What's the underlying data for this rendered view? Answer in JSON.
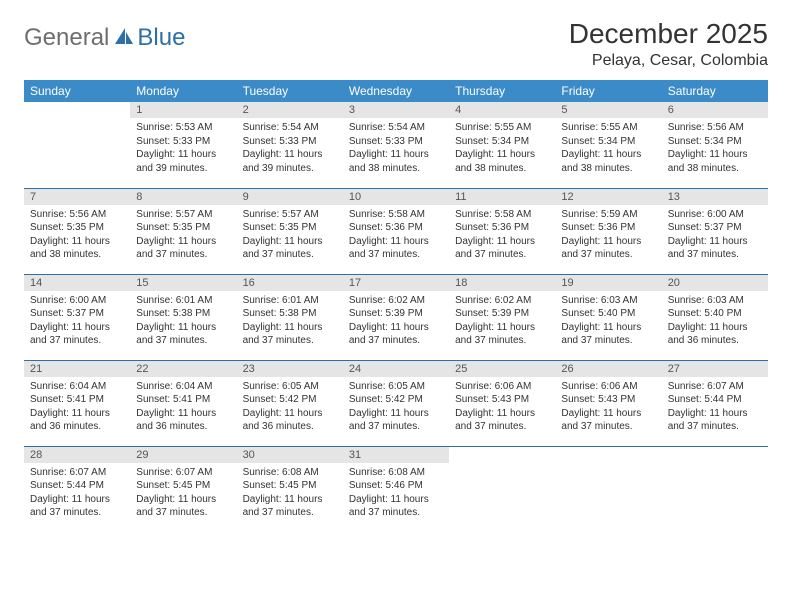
{
  "logo": {
    "general": "General",
    "blue": "Blue"
  },
  "title": "December 2025",
  "location": "Pelaya, Cesar, Colombia",
  "colors": {
    "header_bg": "#3b8bc9",
    "header_text": "#ffffff",
    "daynum_bg": "#e5e5e5",
    "border": "#2f6fa7",
    "logo_gray": "#6e6e6e",
    "logo_blue": "#2f6fa7"
  },
  "weekdays": [
    "Sunday",
    "Monday",
    "Tuesday",
    "Wednesday",
    "Thursday",
    "Friday",
    "Saturday"
  ],
  "weeks": [
    [
      null,
      {
        "n": "1",
        "sr": "5:53 AM",
        "ss": "5:33 PM",
        "dl": "11 hours and 39 minutes."
      },
      {
        "n": "2",
        "sr": "5:54 AM",
        "ss": "5:33 PM",
        "dl": "11 hours and 39 minutes."
      },
      {
        "n": "3",
        "sr": "5:54 AM",
        "ss": "5:33 PM",
        "dl": "11 hours and 38 minutes."
      },
      {
        "n": "4",
        "sr": "5:55 AM",
        "ss": "5:34 PM",
        "dl": "11 hours and 38 minutes."
      },
      {
        "n": "5",
        "sr": "5:55 AM",
        "ss": "5:34 PM",
        "dl": "11 hours and 38 minutes."
      },
      {
        "n": "6",
        "sr": "5:56 AM",
        "ss": "5:34 PM",
        "dl": "11 hours and 38 minutes."
      }
    ],
    [
      {
        "n": "7",
        "sr": "5:56 AM",
        "ss": "5:35 PM",
        "dl": "11 hours and 38 minutes."
      },
      {
        "n": "8",
        "sr": "5:57 AM",
        "ss": "5:35 PM",
        "dl": "11 hours and 37 minutes."
      },
      {
        "n": "9",
        "sr": "5:57 AM",
        "ss": "5:35 PM",
        "dl": "11 hours and 37 minutes."
      },
      {
        "n": "10",
        "sr": "5:58 AM",
        "ss": "5:36 PM",
        "dl": "11 hours and 37 minutes."
      },
      {
        "n": "11",
        "sr": "5:58 AM",
        "ss": "5:36 PM",
        "dl": "11 hours and 37 minutes."
      },
      {
        "n": "12",
        "sr": "5:59 AM",
        "ss": "5:36 PM",
        "dl": "11 hours and 37 minutes."
      },
      {
        "n": "13",
        "sr": "6:00 AM",
        "ss": "5:37 PM",
        "dl": "11 hours and 37 minutes."
      }
    ],
    [
      {
        "n": "14",
        "sr": "6:00 AM",
        "ss": "5:37 PM",
        "dl": "11 hours and 37 minutes."
      },
      {
        "n": "15",
        "sr": "6:01 AM",
        "ss": "5:38 PM",
        "dl": "11 hours and 37 minutes."
      },
      {
        "n": "16",
        "sr": "6:01 AM",
        "ss": "5:38 PM",
        "dl": "11 hours and 37 minutes."
      },
      {
        "n": "17",
        "sr": "6:02 AM",
        "ss": "5:39 PM",
        "dl": "11 hours and 37 minutes."
      },
      {
        "n": "18",
        "sr": "6:02 AM",
        "ss": "5:39 PM",
        "dl": "11 hours and 37 minutes."
      },
      {
        "n": "19",
        "sr": "6:03 AM",
        "ss": "5:40 PM",
        "dl": "11 hours and 37 minutes."
      },
      {
        "n": "20",
        "sr": "6:03 AM",
        "ss": "5:40 PM",
        "dl": "11 hours and 36 minutes."
      }
    ],
    [
      {
        "n": "21",
        "sr": "6:04 AM",
        "ss": "5:41 PM",
        "dl": "11 hours and 36 minutes."
      },
      {
        "n": "22",
        "sr": "6:04 AM",
        "ss": "5:41 PM",
        "dl": "11 hours and 36 minutes."
      },
      {
        "n": "23",
        "sr": "6:05 AM",
        "ss": "5:42 PM",
        "dl": "11 hours and 36 minutes."
      },
      {
        "n": "24",
        "sr": "6:05 AM",
        "ss": "5:42 PM",
        "dl": "11 hours and 37 minutes."
      },
      {
        "n": "25",
        "sr": "6:06 AM",
        "ss": "5:43 PM",
        "dl": "11 hours and 37 minutes."
      },
      {
        "n": "26",
        "sr": "6:06 AM",
        "ss": "5:43 PM",
        "dl": "11 hours and 37 minutes."
      },
      {
        "n": "27",
        "sr": "6:07 AM",
        "ss": "5:44 PM",
        "dl": "11 hours and 37 minutes."
      }
    ],
    [
      {
        "n": "28",
        "sr": "6:07 AM",
        "ss": "5:44 PM",
        "dl": "11 hours and 37 minutes."
      },
      {
        "n": "29",
        "sr": "6:07 AM",
        "ss": "5:45 PM",
        "dl": "11 hours and 37 minutes."
      },
      {
        "n": "30",
        "sr": "6:08 AM",
        "ss": "5:45 PM",
        "dl": "11 hours and 37 minutes."
      },
      {
        "n": "31",
        "sr": "6:08 AM",
        "ss": "5:46 PM",
        "dl": "11 hours and 37 minutes."
      },
      null,
      null,
      null
    ]
  ],
  "labels": {
    "sunrise": "Sunrise:",
    "sunset": "Sunset:",
    "daylight": "Daylight:"
  }
}
